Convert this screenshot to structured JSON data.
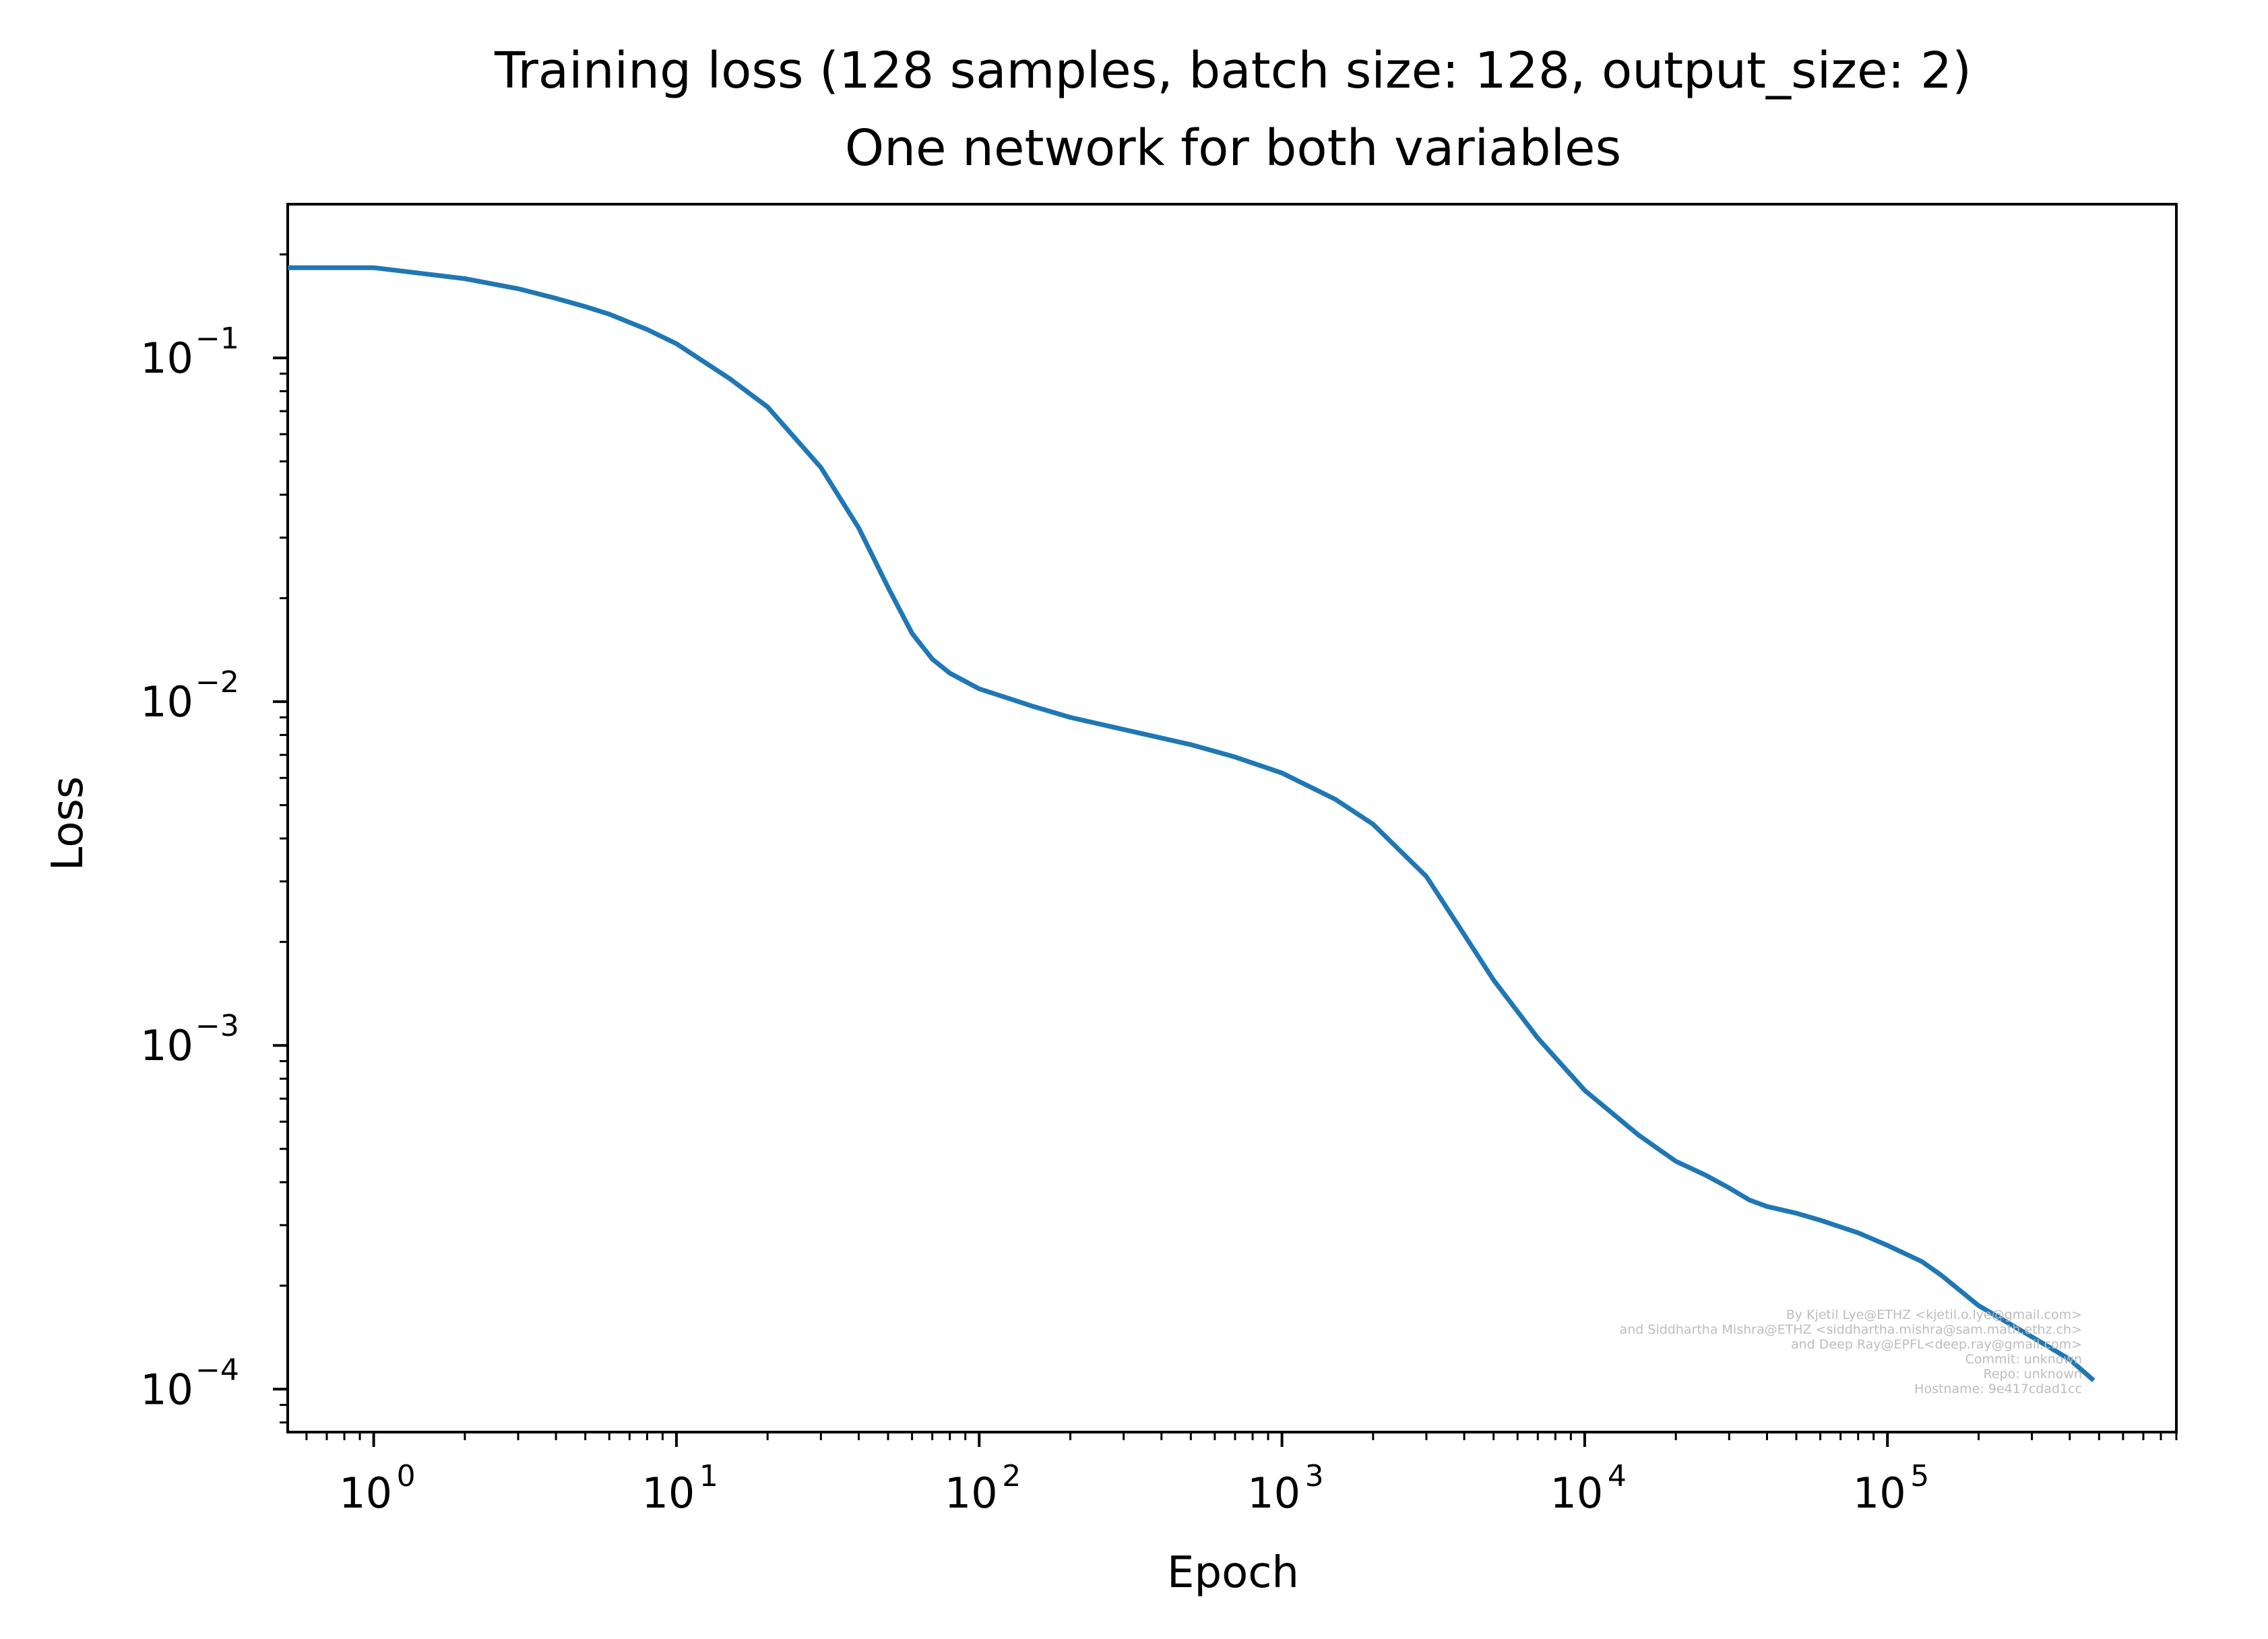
{
  "chart_data": {
    "type": "line",
    "title": "Training loss (128 samples, batch size: 128, output_size: 2)",
    "subtitle": "One network for both variables",
    "xlabel": "Epoch",
    "ylabel": "Loss",
    "xscale": "log",
    "yscale": "log",
    "xlim": [
      0.52,
      900000
    ],
    "ylim": [
      7.5e-05,
      0.28
    ],
    "grid": false,
    "legend": "none",
    "series": [
      {
        "color": "#1f77b4",
        "x": [
          0.52,
          1,
          2,
          3,
          4,
          5,
          6,
          8,
          10,
          15,
          20,
          30,
          40,
          50,
          60,
          70,
          80,
          100,
          150,
          200,
          300,
          500,
          700,
          1000,
          1500,
          2000,
          3000,
          4000,
          5000,
          7000,
          10000,
          15000,
          20000,
          25000,
          30000,
          35000,
          40000,
          50000,
          60000,
          80000,
          100000,
          130000,
          150000,
          200000,
          300000,
          400000,
          480000
        ],
        "y": [
          0.183,
          0.183,
          0.17,
          0.159,
          0.149,
          0.141,
          0.134,
          0.121,
          0.11,
          0.087,
          0.072,
          0.048,
          0.032,
          0.0215,
          0.0158,
          0.0133,
          0.0121,
          0.0109,
          0.0097,
          0.009,
          0.0083,
          0.0075,
          0.0069,
          0.0062,
          0.0052,
          0.0044,
          0.0031,
          0.0021,
          0.00155,
          0.00105,
          0.00074,
          0.00055,
          0.00046,
          0.00042,
          0.000385,
          0.000355,
          0.00034,
          0.000325,
          0.00031,
          0.000285,
          0.000262,
          0.000235,
          0.000215,
          0.000175,
          0.000142,
          0.000122,
          0.000106
        ]
      }
    ],
    "xticks": [
      {
        "value": 1,
        "base": "10",
        "exp": "0"
      },
      {
        "value": 10,
        "base": "10",
        "exp": "1"
      },
      {
        "value": 100,
        "base": "10",
        "exp": "2"
      },
      {
        "value": 1000,
        "base": "10",
        "exp": "3"
      },
      {
        "value": 10000,
        "base": "10",
        "exp": "4"
      },
      {
        "value": 100000,
        "base": "10",
        "exp": "5"
      }
    ],
    "yticks": [
      {
        "value": 0.1,
        "base": "10",
        "exp": "−1"
      },
      {
        "value": 0.01,
        "base": "10",
        "exp": "−2"
      },
      {
        "value": 0.001,
        "base": "10",
        "exp": "−3"
      },
      {
        "value": 0.0001,
        "base": "10",
        "exp": "−4"
      }
    ]
  },
  "credits": [
    "By Kjetil Lye@ETHZ <kjetil.o.lye@gmail.com>",
    "and Siddhartha Mishra@ETHZ <siddhartha.mishra@sam.math.ethz.ch>",
    "and Deep Ray@EPFL<deep.ray@gmail.com>",
    "Commit: unknown",
    "Repo: unknown",
    "Hostname: 9e417cdad1cc"
  ]
}
